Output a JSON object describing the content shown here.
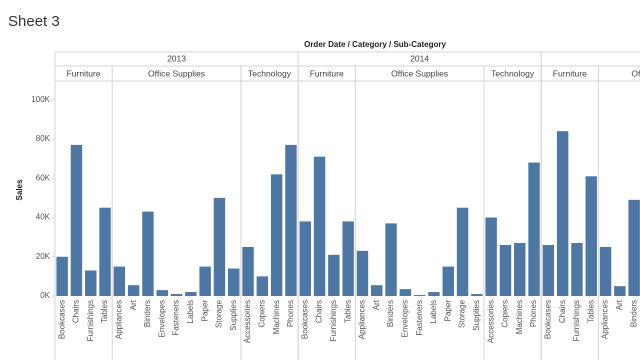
{
  "chart_data": {
    "type": "bar",
    "title": "Sheet 3",
    "x_title": "Order Date / Category / Sub-Category",
    "y_title": "Sales",
    "color": "#4f77a4",
    "ylim": [
      0,
      106000
    ],
    "yticks": [
      {
        "value": 0,
        "label": "0K"
      },
      {
        "value": 20000,
        "label": "20K"
      },
      {
        "value": 40000,
        "label": "40K"
      },
      {
        "value": 60000,
        "label": "60K"
      },
      {
        "value": 80000,
        "label": "80K"
      },
      {
        "value": 100000,
        "label": "100K"
      }
    ],
    "panes": [
      {
        "name": "2013",
        "groups": [
          {
            "name": "Furniture",
            "subcategories": [
              "Bookcases",
              "Chairs",
              "Furnishings",
              "Tables"
            ],
            "values": [
              20000,
              77000,
              13000,
              45000
            ]
          },
          {
            "name": "Office Supplies",
            "subcategories": [
              "Appliances",
              "Art",
              "Binders",
              "Envelopes",
              "Fasteners",
              "Labels",
              "Paper",
              "Storage",
              "Supplies"
            ],
            "values": [
              15000,
              5500,
              43000,
              3000,
              1000,
              2000,
              15000,
              50000,
              14000
            ]
          },
          {
            "name": "Technology",
            "subcategories": [
              "Accessories",
              "Copiers",
              "Machines",
              "Phones"
            ],
            "values": [
              25000,
              10000,
              62000,
              77000
            ]
          }
        ]
      },
      {
        "name": "2014",
        "groups": [
          {
            "name": "Furniture",
            "subcategories": [
              "Bookcases",
              "Chairs",
              "Furnishings",
              "Tables"
            ],
            "values": [
              38000,
              71000,
              21000,
              38000
            ]
          },
          {
            "name": "Office Supplies",
            "subcategories": [
              "Appliances",
              "Art",
              "Binders",
              "Envelopes",
              "Fasteners",
              "Labels",
              "Paper",
              "Storage",
              "Supplies"
            ],
            "values": [
              23000,
              5500,
              37000,
              3500,
              500,
              2000,
              15000,
              45000,
              1000
            ]
          },
          {
            "name": "Technology",
            "subcategories": [
              "Accessories",
              "Copiers",
              "Machines",
              "Phones"
            ],
            "values": [
              40000,
              26000,
              27000,
              68000
            ]
          }
        ]
      },
      {
        "name": null,
        "groups": [
          {
            "name": "Furniture",
            "subcategories": [
              "Bookcases",
              "Chairs",
              "Furnishings",
              "Tables"
            ],
            "values": [
              26000,
              84000,
              27000,
              61000
            ]
          },
          {
            "name": "Office Supplies",
            "subcategories": [
              "Appliances",
              "Art",
              "Binders"
            ],
            "values": [
              25000,
              5000,
              49000
            ]
          }
        ]
      }
    ]
  }
}
